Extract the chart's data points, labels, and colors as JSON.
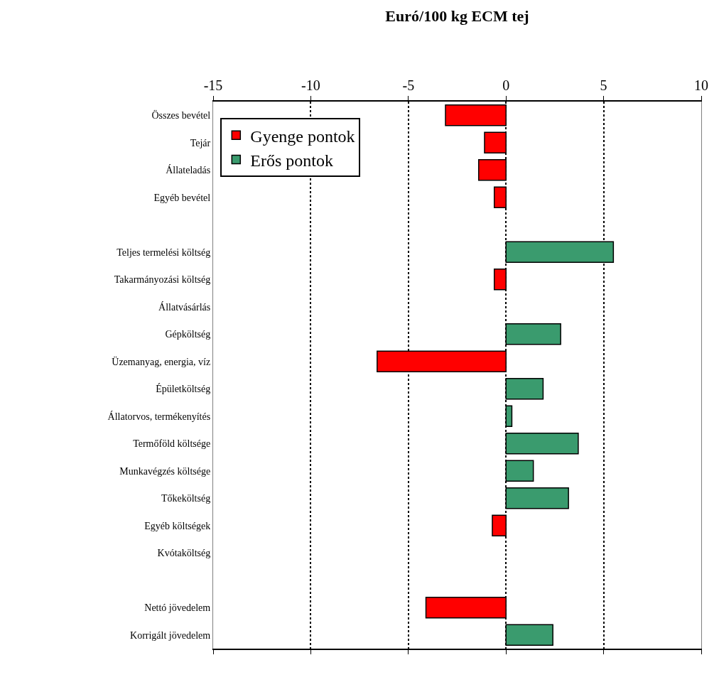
{
  "chart_data": {
    "type": "bar",
    "orientation": "horizontal",
    "title": "Euró/100 kg ECM tej",
    "categories": [
      "Összes bevétel",
      "Tejár",
      "Állateladás",
      "Egyéb bevétel",
      null,
      "Teljes termelési költség",
      "Takarmányozási költség",
      "Állatvásárlás",
      "Gépköltség",
      "Üzemanyag, energia, víz",
      "Épületköltség",
      "Állatorvos, termékenyítés",
      "Termőföld költsége",
      "Munkavégzés költsége",
      "Tőkeköltség",
      "Egyéb költségek",
      "Kvótaköltség",
      null,
      "Nettó jövedelem",
      "Korrigált jövedelem"
    ],
    "series": [
      {
        "name": "Gyenge pontok",
        "color": "#ff0000",
        "values": [
          -3.1,
          -1.1,
          -1.4,
          -0.6,
          null,
          null,
          -0.6,
          null,
          null,
          -6.6,
          null,
          null,
          null,
          null,
          null,
          -0.7,
          null,
          null,
          -4.1,
          null
        ]
      },
      {
        "name": "Erős pontok",
        "color": "#3a9b6e",
        "values": [
          null,
          null,
          null,
          null,
          null,
          5.5,
          null,
          null,
          2.8,
          null,
          1.9,
          0.3,
          3.7,
          1.4,
          3.2,
          null,
          null,
          null,
          null,
          2.4
        ]
      }
    ],
    "xlim": [
      -15,
      10
    ],
    "xticks": [
      -15,
      -10,
      -5,
      0,
      5,
      10
    ],
    "grid": "x",
    "legend": "top left"
  }
}
